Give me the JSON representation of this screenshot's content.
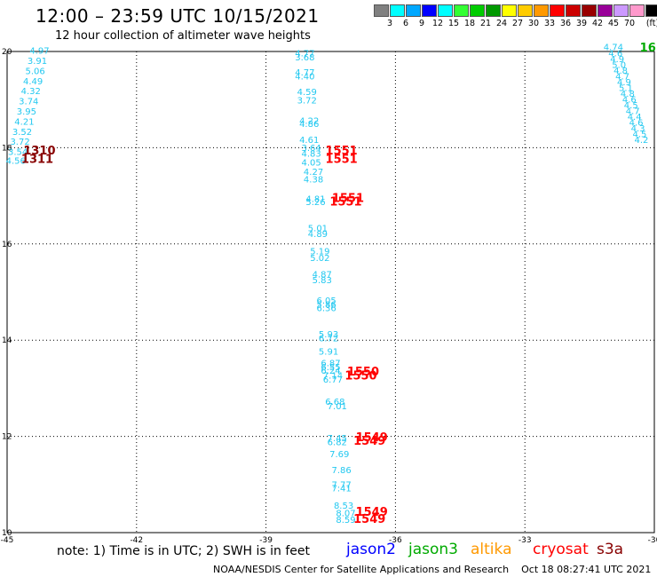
{
  "header": {
    "title": "12:00 – 23:59 UTC 10/15/2021",
    "subtitle": "12 hour collection of altimeter wave heights"
  },
  "legend": {
    "colors": [
      "#808080",
      "#00ffff",
      "#00a8ff",
      "#0000ff",
      "#00ffff",
      "#33ff33",
      "#00cc00",
      "#009900",
      "#ffff00",
      "#ffcc00",
      "#ff9900",
      "#ff0000",
      "#cc0000",
      "#990000",
      "#990099",
      "#cc99ff",
      "#ff99cc",
      "#000000"
    ],
    "labels": [
      "3",
      "6",
      "9",
      "12",
      "15",
      "18",
      "21",
      "24",
      "27",
      "30",
      "33",
      "36",
      "39",
      "42",
      "45",
      "70",
      "(ft)"
    ]
  },
  "map": {
    "lon_range": [
      -45,
      -30
    ],
    "lat_range": [
      10,
      20
    ],
    "x_ticks": [
      "-45",
      "-42",
      "-39",
      "-36",
      "-33",
      "-30"
    ],
    "y_ticks": [
      "20",
      "18",
      "16",
      "14",
      "12",
      "10"
    ]
  },
  "wave_color": "#22c8f0",
  "pass_color_red": "#ff0000",
  "pass_color_dark": "#880000",
  "pass_color_green": "#00aa00",
  "swh_labels": [
    {
      "v": "4.97",
      "lat": 19.95,
      "lon": -44.25
    },
    {
      "v": "3.91",
      "lat": 19.74,
      "lon": -44.3
    },
    {
      "v": "5.06",
      "lat": 19.53,
      "lon": -44.35
    },
    {
      "v": "4.49",
      "lat": 19.32,
      "lon": -44.4
    },
    {
      "v": "4.32",
      "lat": 19.11,
      "lon": -44.45
    },
    {
      "v": "3.74",
      "lat": 18.9,
      "lon": -44.5
    },
    {
      "v": "3.95",
      "lat": 18.69,
      "lon": -44.55
    },
    {
      "v": "4.21",
      "lat": 18.48,
      "lon": -44.6
    },
    {
      "v": "3.52",
      "lat": 18.27,
      "lon": -44.65
    },
    {
      "v": "3.72",
      "lat": 18.06,
      "lon": -44.7
    },
    {
      "v": "3.54",
      "lat": 17.85,
      "lon": -44.75
    },
    {
      "v": "4.56",
      "lat": 17.67,
      "lon": -44.8
    },
    {
      "v": "4.77",
      "lat": 19.9,
      "lon": -38.1
    },
    {
      "v": "3.68",
      "lat": 19.82,
      "lon": -38.1
    },
    {
      "v": "4.77",
      "lat": 19.5,
      "lon": -38.1
    },
    {
      "v": "4.40",
      "lat": 19.42,
      "lon": -38.1
    },
    {
      "v": "4.59",
      "lat": 19.1,
      "lon": -38.05
    },
    {
      "v": "3.72",
      "lat": 18.92,
      "lon": -38.05
    },
    {
      "v": "4.22",
      "lat": 18.5,
      "lon": -38
    },
    {
      "v": "4.86",
      "lat": 18.43,
      "lon": -38
    },
    {
      "v": "4.61",
      "lat": 18.1,
      "lon": -38
    },
    {
      "v": "3.64",
      "lat": 17.93,
      "lon": -37.95
    },
    {
      "v": "4.83",
      "lat": 17.81,
      "lon": -37.95
    },
    {
      "v": "4.05",
      "lat": 17.63,
      "lon": -37.95
    },
    {
      "v": "4.27",
      "lat": 17.44,
      "lon": -37.9
    },
    {
      "v": "4.38",
      "lat": 17.28,
      "lon": -37.9
    },
    {
      "v": "4.81",
      "lat": 16.87,
      "lon": -37.85
    },
    {
      "v": "5.26",
      "lat": 16.81,
      "lon": -37.85
    },
    {
      "v": "5.01",
      "lat": 16.26,
      "lon": -37.8
    },
    {
      "v": "4.89",
      "lat": 16.14,
      "lon": -37.8
    },
    {
      "v": "5.19",
      "lat": 15.78,
      "lon": -37.75
    },
    {
      "v": "5.02",
      "lat": 15.65,
      "lon": -37.75
    },
    {
      "v": "4.87",
      "lat": 15.3,
      "lon": -37.7
    },
    {
      "v": "5.83",
      "lat": 15.18,
      "lon": -37.7
    },
    {
      "v": "6.05",
      "lat": 14.76,
      "lon": -37.6
    },
    {
      "v": "5.86",
      "lat": 14.68,
      "lon": -37.6
    },
    {
      "v": "6.36",
      "lat": 14.6,
      "lon": -37.6
    },
    {
      "v": "5.93",
      "lat": 14.06,
      "lon": -37.55
    },
    {
      "v": "6.72",
      "lat": 13.98,
      "lon": -37.55
    },
    {
      "v": "5.91",
      "lat": 13.7,
      "lon": -37.55
    },
    {
      "v": "6.87",
      "lat": 13.46,
      "lon": -37.5
    },
    {
      "v": "6.55",
      "lat": 13.38,
      "lon": -37.5
    },
    {
      "v": "6.24",
      "lat": 13.3,
      "lon": -37.5
    },
    {
      "v": "7.14",
      "lat": 13.2,
      "lon": -37.45
    },
    {
      "v": "6.77",
      "lat": 13.12,
      "lon": -37.45
    },
    {
      "v": "6.68",
      "lat": 12.66,
      "lon": -37.4
    },
    {
      "v": "7.01",
      "lat": 12.56,
      "lon": -37.35
    },
    {
      "v": "7.45",
      "lat": 11.9,
      "lon": -37.35
    },
    {
      "v": "6.82",
      "lat": 11.82,
      "lon": -37.35
    },
    {
      "v": "7.69",
      "lat": 11.57,
      "lon": -37.3
    },
    {
      "v": "7.86",
      "lat": 11.24,
      "lon": -37.25
    },
    {
      "v": "7.77",
      "lat": 10.93,
      "lon": -37.25
    },
    {
      "v": "7.41",
      "lat": 10.86,
      "lon": -37.25
    },
    {
      "v": "8.53",
      "lat": 10.5,
      "lon": -37.2
    },
    {
      "v": "8.07",
      "lat": 10.34,
      "lon": -37.15
    },
    {
      "v": "8.59",
      "lat": 10.2,
      "lon": -37.15
    },
    {
      "v": "4.74",
      "lat": 20.03,
      "lon": -30.95
    },
    {
      "v": "4.6",
      "lat": 19.9,
      "lon": -30.9
    },
    {
      "v": "4.9",
      "lat": 19.78,
      "lon": -30.86
    },
    {
      "v": "5.0",
      "lat": 19.66,
      "lon": -30.82
    },
    {
      "v": "4.8",
      "lat": 19.54,
      "lon": -30.78
    },
    {
      "v": "4.7",
      "lat": 19.42,
      "lon": -30.74
    },
    {
      "v": "4.9",
      "lat": 19.3,
      "lon": -30.7
    },
    {
      "v": "5.1",
      "lat": 19.18,
      "lon": -30.66
    },
    {
      "v": "4.8",
      "lat": 19.06,
      "lon": -30.62
    },
    {
      "v": "4.6",
      "lat": 18.94,
      "lon": -30.58
    },
    {
      "v": "4.5",
      "lat": 18.82,
      "lon": -30.54
    },
    {
      "v": "4.7",
      "lat": 18.7,
      "lon": -30.5
    },
    {
      "v": "4.4",
      "lat": 18.58,
      "lon": -30.46
    },
    {
      "v": "4.6",
      "lat": 18.46,
      "lon": -30.42
    },
    {
      "v": "4.3",
      "lat": 18.34,
      "lon": -30.38
    },
    {
      "v": "4.5",
      "lat": 18.22,
      "lon": -30.34
    },
    {
      "v": "4.2",
      "lat": 18.1,
      "lon": -30.3
    }
  ],
  "pass_labels": [
    {
      "v": "1310",
      "lat": 17.86,
      "lon": -44.25,
      "color": "#880000"
    },
    {
      "v": "1311",
      "lat": 17.68,
      "lon": -44.3,
      "color": "#880000"
    },
    {
      "v": "1551",
      "lat": 17.86,
      "lon": -37.25,
      "color": "#ff0000"
    },
    {
      "v": "1551",
      "lat": 17.68,
      "lon": -37.25,
      "color": "#ff0000"
    },
    {
      "v": "1551",
      "lat": 16.87,
      "lon": -37.1,
      "color": "#ff0000"
    },
    {
      "v": "1551",
      "lat": 16.8,
      "lon": -37.15,
      "color": "#ff0000"
    },
    {
      "v": "1550",
      "lat": 13.27,
      "lon": -36.75,
      "color": "#ff0000"
    },
    {
      "v": "1550",
      "lat": 13.18,
      "lon": -36.8,
      "color": "#ff0000"
    },
    {
      "v": "1549",
      "lat": 11.9,
      "lon": -36.55,
      "color": "#ff0000"
    },
    {
      "v": "1549",
      "lat": 11.83,
      "lon": -36.6,
      "color": "#ff0000"
    },
    {
      "v": "1549",
      "lat": 10.35,
      "lon": -36.55,
      "color": "#ff0000"
    },
    {
      "v": "1549",
      "lat": 10.2,
      "lon": -36.6,
      "color": "#ff0000"
    },
    {
      "v": "16",
      "lat": 20.0,
      "lon": -30.15,
      "color": "#00aa00"
    }
  ],
  "footer": {
    "note": "note: 1) Time is in UTC; 2) SWH is in feet",
    "satellites": [
      {
        "name": "jason2",
        "color": "#0000ff"
      },
      {
        "name": "jason3",
        "color": "#00aa00"
      },
      {
        "name": "altika",
        "color": "#ff9900"
      },
      {
        "name": "cryosat",
        "color": "#ff0000"
      },
      {
        "name": "s3a",
        "color": "#880000"
      }
    ],
    "credit": "NOAA/NESDIS Center for Satellite Applications and Research",
    "timestamp": "Oct 18 08:27:41 UTC 2021"
  }
}
